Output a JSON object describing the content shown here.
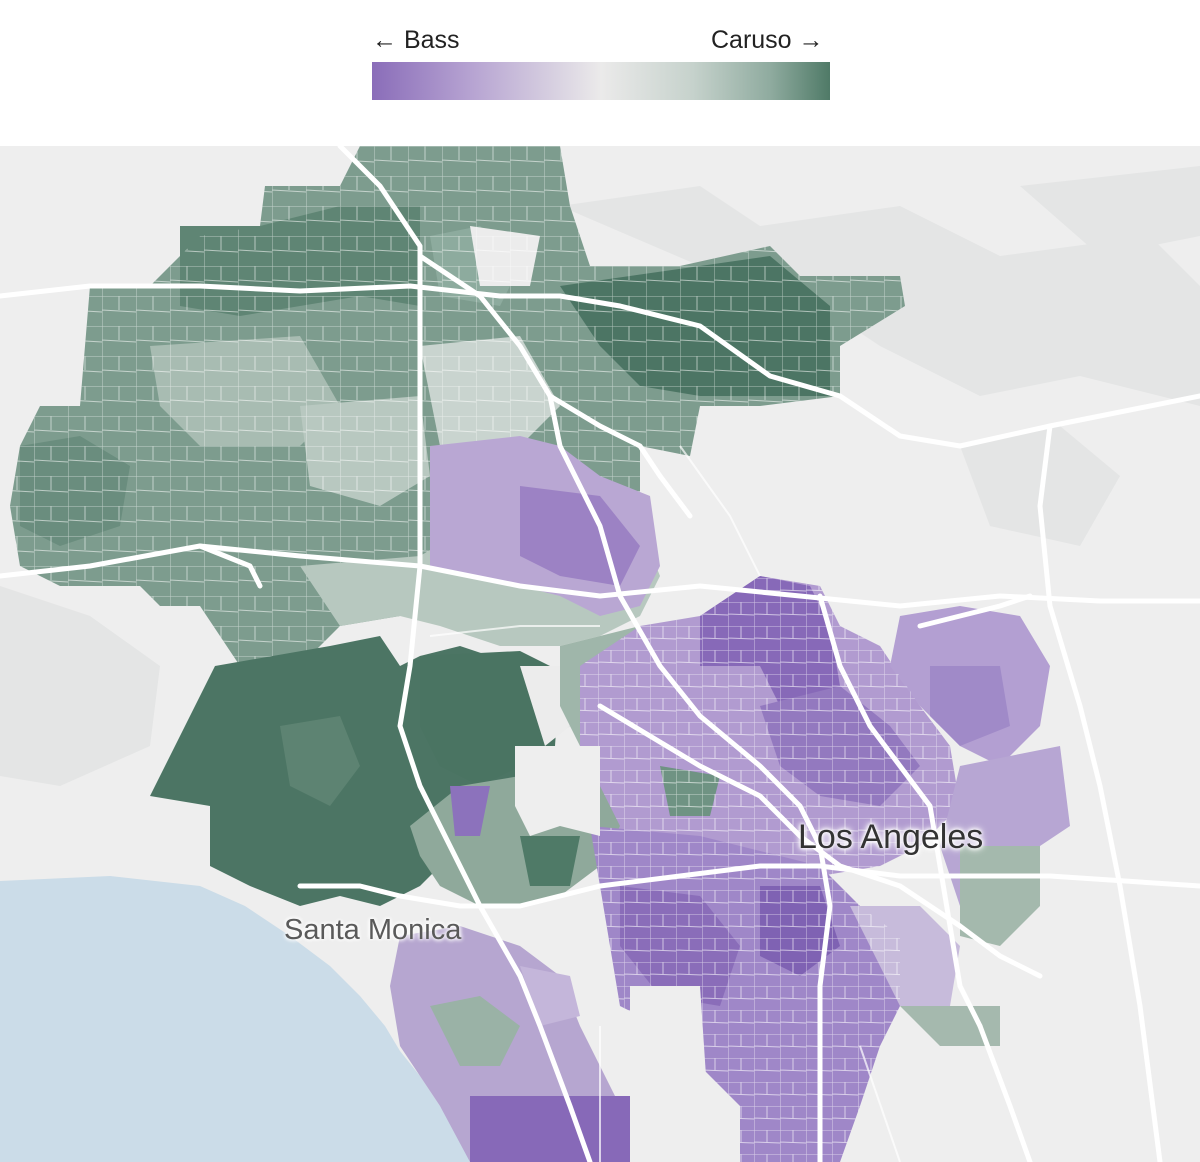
{
  "legend": {
    "left_label": "← Bass",
    "right_label": "Caruso →",
    "colors": {
      "bass_strong": "#8a6db9",
      "bass_light": "#c9bcdc",
      "neutral": "#ebeaea",
      "caruso_light": "#b5c6bd",
      "caruso_strong": "#4f7a67"
    }
  },
  "map": {
    "labels": {
      "santa_monica": "Santa Monica",
      "los_angeles": "Los Angeles"
    },
    "colors": {
      "background": "#eeeeee",
      "ocean": "#cbdce8",
      "roads": "#ffffff",
      "hills": "#e3e4e4"
    }
  }
}
